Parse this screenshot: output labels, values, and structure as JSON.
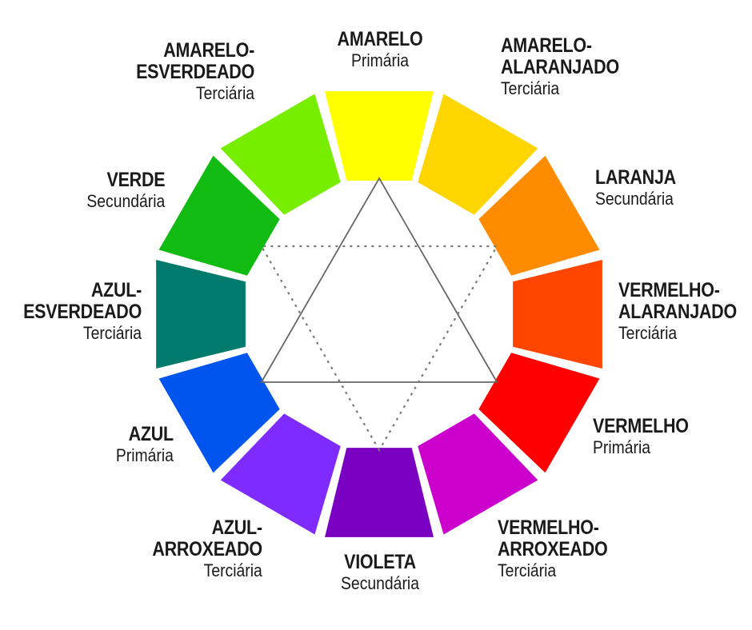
{
  "wheel": {
    "segments": [
      {
        "id": "amarelo",
        "color": "#ffff00"
      },
      {
        "id": "amarelo-alaranjado",
        "color": "#ffd500"
      },
      {
        "id": "laranja",
        "color": "#ff8c00"
      },
      {
        "id": "vermelho-alaranjado",
        "color": "#ff4500"
      },
      {
        "id": "vermelho",
        "color": "#ff0000"
      },
      {
        "id": "vermelho-arroxeado",
        "color": "#cc00cc"
      },
      {
        "id": "violeta",
        "color": "#7a00c2"
      },
      {
        "id": "azul-arroxeado",
        "color": "#7f2bff"
      },
      {
        "id": "azul",
        "color": "#0055ee"
      },
      {
        "id": "azul-esverdeado",
        "color": "#007a6a"
      },
      {
        "id": "verde",
        "color": "#11bb11"
      },
      {
        "id": "amarelo-esverdeado",
        "color": "#77ee00"
      }
    ]
  },
  "labels": {
    "amarelo": {
      "name": [
        "AMARELO"
      ],
      "category": "Primária"
    },
    "amarelo_alaranjado": {
      "name": [
        "AMARELO-",
        "ALARANJADO"
      ],
      "category": "Terciária"
    },
    "laranja": {
      "name": [
        "LARANJA"
      ],
      "category": "Secundária"
    },
    "vermelho_alaranjado": {
      "name": [
        "VERMELHO-",
        "ALARANJADO"
      ],
      "category": "Terciária"
    },
    "vermelho": {
      "name": [
        "VERMELHO"
      ],
      "category": "Primária"
    },
    "vermelho_arroxeado": {
      "name": [
        "VERMELHO-",
        "ARROXEADO"
      ],
      "category": "Terciária"
    },
    "violeta": {
      "name": [
        "VIOLETA"
      ],
      "category": "Secundária"
    },
    "azul_arroxeado": {
      "name": [
        "AZUL-",
        "ARROXEADO"
      ],
      "category": "Terciária"
    },
    "azul": {
      "name": [
        "AZUL"
      ],
      "category": "Primária"
    },
    "azul_esverdeado": {
      "name": [
        "AZUL-",
        "ESVERDEADO"
      ],
      "category": "Terciária"
    },
    "verde": {
      "name": [
        "VERDE"
      ],
      "category": "Secundária"
    },
    "amarelo_esverdeado": {
      "name": [
        "AMARELO-",
        "ESVERDEADO"
      ],
      "category": "Terciária"
    }
  }
}
